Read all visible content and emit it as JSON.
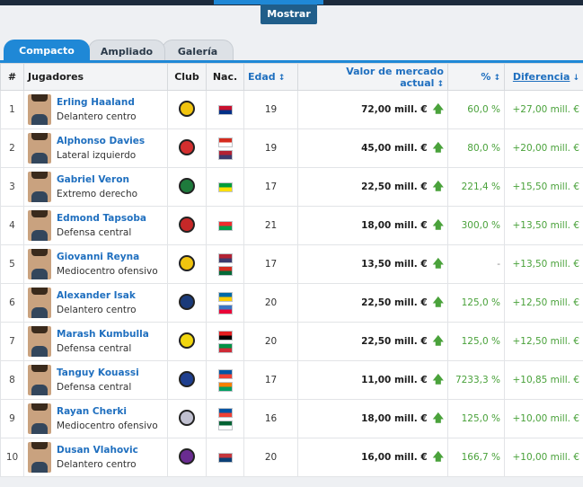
{
  "header": {
    "mostrar_label": "Mostrar"
  },
  "tabs": [
    {
      "label": "Compacto"
    },
    {
      "label": "Ampliado"
    },
    {
      "label": "Galería"
    }
  ],
  "table": {
    "columns": {
      "idx": "#",
      "players": "Jugadores",
      "club": "Club",
      "nat": "Nac.",
      "age": "Edad",
      "value": "Valor de mercado actual",
      "pct": "%",
      "diff": "Diferencia"
    },
    "rows": [
      {
        "idx": "1",
        "name": "Erling Haaland",
        "pos": "Delantero centro",
        "age": "19",
        "value": "72,00 mill. €",
        "pct": "60,0 %",
        "diff": "+27,00 mill. €"
      },
      {
        "idx": "2",
        "name": "Alphonso Davies",
        "pos": "Lateral izquierdo",
        "age": "19",
        "value": "45,00 mill. €",
        "pct": "80,0 %",
        "diff": "+20,00 mill. €"
      },
      {
        "idx": "3",
        "name": "Gabriel Veron",
        "pos": "Extremo derecho",
        "age": "17",
        "value": "22,50 mill. €",
        "pct": "221,4 %",
        "diff": "+15,50 mill. €"
      },
      {
        "idx": "4",
        "name": "Edmond Tapsoba",
        "pos": "Defensa central",
        "age": "21",
        "value": "18,00 mill. €",
        "pct": "300,0 %",
        "diff": "+13,50 mill. €"
      },
      {
        "idx": "5",
        "name": "Giovanni Reyna",
        "pos": "Mediocentro ofensivo",
        "age": "17",
        "value": "13,50 mill. €",
        "pct": "-",
        "diff": "+13,50 mill. €"
      },
      {
        "idx": "6",
        "name": "Alexander Isak",
        "pos": "Delantero centro",
        "age": "20",
        "value": "22,50 mill. €",
        "pct": "125,0 %",
        "diff": "+12,50 mill. €"
      },
      {
        "idx": "7",
        "name": "Marash Kumbulla",
        "pos": "Defensa central",
        "age": "20",
        "value": "22,50 mill. €",
        "pct": "125,0 %",
        "diff": "+12,50 mill. €"
      },
      {
        "idx": "8",
        "name": "Tanguy Kouassi",
        "pos": "Defensa central",
        "age": "17",
        "value": "11,00 mill. €",
        "pct": "7233,3 %",
        "diff": "+10,85 mill. €"
      },
      {
        "idx": "9",
        "name": "Rayan Cherki",
        "pos": "Mediocentro ofensivo",
        "age": "16",
        "value": "18,00 mill. €",
        "pct": "125,0 %",
        "diff": "+10,00 mill. €"
      },
      {
        "idx": "10",
        "name": "Dusan Vlahovic",
        "pos": "Delantero centro",
        "age": "20",
        "value": "16,00 mill. €",
        "pct": "166,7 %",
        "diff": "+10,00 mill. €"
      }
    ]
  },
  "icons": {
    "sort": "sort-updown-icon",
    "sort_desc": "sort-down-icon",
    "trend_up": "arrow-up-icon"
  },
  "colors": {
    "accent": "#1f88d6",
    "link": "#1f6fbf",
    "positive": "#4aa23b"
  }
}
